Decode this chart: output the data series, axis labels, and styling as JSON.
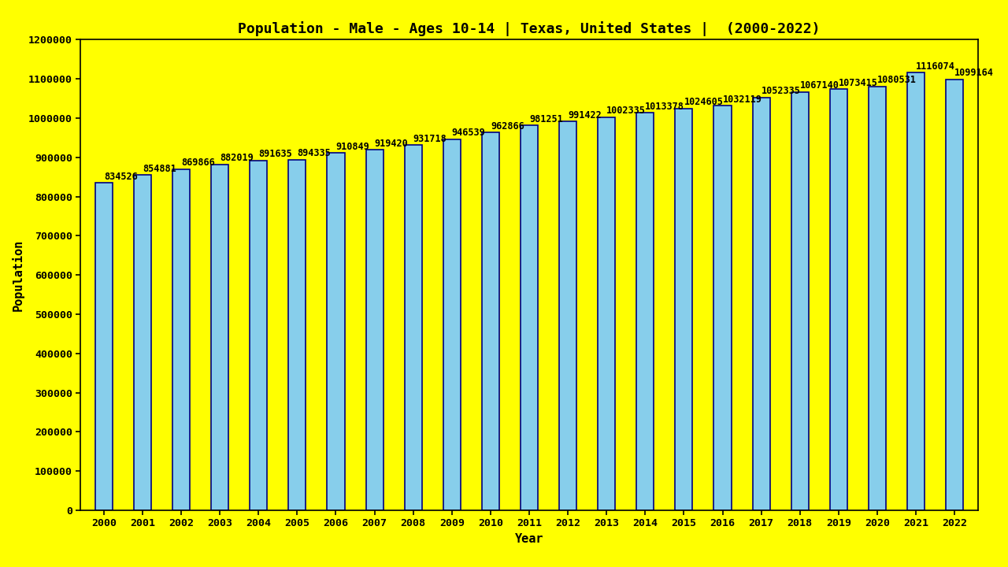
{
  "title": "Population - Male - Ages 10-14 | Texas, United States |  (2000-2022)",
  "xlabel": "Year",
  "ylabel": "Population",
  "background_color": "#FFFF00",
  "bar_color": "#87CEEB",
  "bar_edge_color": "#000080",
  "years": [
    2000,
    2001,
    2002,
    2003,
    2004,
    2005,
    2006,
    2007,
    2008,
    2009,
    2010,
    2011,
    2012,
    2013,
    2014,
    2015,
    2016,
    2017,
    2018,
    2019,
    2020,
    2021,
    2022
  ],
  "values": [
    834526,
    854881,
    869866,
    882019,
    891635,
    894335,
    910849,
    919420,
    931718,
    946539,
    962866,
    981251,
    991422,
    1002335,
    1013378,
    1024605,
    1032119,
    1052335,
    1067140,
    1073415,
    1080531,
    1116074,
    1099164
  ],
  "ylim": [
    0,
    1200000
  ],
  "ytick_step": 100000,
  "title_color": "#000000",
  "label_color": "#000000",
  "tick_color": "#000000",
  "title_fontsize": 13,
  "axis_label_fontsize": 11,
  "tick_fontsize": 9.5,
  "bar_label_fontsize": 8.5,
  "bar_width": 0.45
}
